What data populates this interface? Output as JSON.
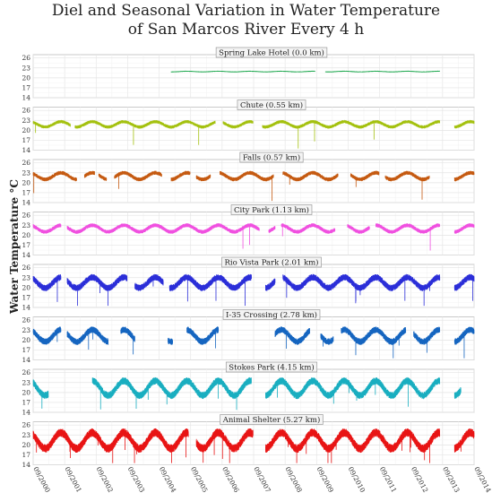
{
  "chart_data": {
    "type": "line",
    "title_lines": [
      "Diel and Seasonal Variation in Water Temperature",
      "of San Marcos River Every 4 h"
    ],
    "ylabel": "Water Temperature °C",
    "y_ticks": [
      14,
      17,
      20,
      23,
      26
    ],
    "ylim": [
      14,
      27
    ],
    "x_ticks": [
      "09/2000",
      "09/2001",
      "09/2002",
      "09/2003",
      "09/2004",
      "09/2005",
      "09/2006",
      "09/2007",
      "09/2008",
      "09/2009",
      "09/2010",
      "09/2011",
      "09/2012",
      "09/2013",
      "09/2014"
    ],
    "xlim": [
      2000.67,
      2014.67
    ],
    "grid": true,
    "panels": [
      {
        "label": "Spring Lake Hotel (0.0 km)",
        "color": "#1fa84f",
        "mean": 21.9,
        "amp": 0.1,
        "noise": 0.15,
        "spikes": 0,
        "segments": [
          [
            2005.05,
            2009.62
          ],
          [
            2009.95,
            2013.58
          ]
        ]
      },
      {
        "label": "Chute (0.55 km)",
        "color": "#a4c10f",
        "mean": 21.8,
        "amp": 0.8,
        "noise": 0.5,
        "spikes": 3,
        "segments": [
          [
            2000.67,
            2001.85
          ],
          [
            2002.0,
            2006.45
          ],
          [
            2006.7,
            2007.65
          ],
          [
            2007.95,
            2013.58
          ],
          [
            2014.05,
            2014.67
          ]
        ]
      },
      {
        "label": "Falls (0.57 km)",
        "color": "#c55a11",
        "mean": 22.0,
        "amp": 1.0,
        "noise": 0.6,
        "spikes": 4,
        "segments": [
          [
            2000.67,
            2002.05
          ],
          [
            2002.3,
            2002.62
          ],
          [
            2002.75,
            2003.0
          ],
          [
            2003.25,
            2004.75
          ],
          [
            2005.05,
            2005.65
          ],
          [
            2005.85,
            2006.3
          ],
          [
            2006.6,
            2008.3
          ],
          [
            2008.6,
            2010.35
          ],
          [
            2010.75,
            2011.65
          ],
          [
            2011.85,
            2013.25
          ],
          [
            2014.05,
            2014.67
          ]
        ]
      },
      {
        "label": "City Park (1.13 km)",
        "color": "#f050e0",
        "mean": 22.0,
        "amp": 1.0,
        "noise": 0.6,
        "spikes": 2,
        "segments": [
          [
            2000.67,
            2001.55
          ],
          [
            2001.75,
            2007.85
          ],
          [
            2008.15,
            2008.35
          ],
          [
            2008.55,
            2010.25
          ],
          [
            2010.65,
            2011.35
          ],
          [
            2011.55,
            2013.58
          ],
          [
            2014.05,
            2014.67
          ]
        ]
      },
      {
        "label": "Rio Vista Park (2.01 km)",
        "color": "#2b2ed8",
        "mean": 21.5,
        "amp": 1.6,
        "noise": 1.0,
        "spikes": 8,
        "segments": [
          [
            2000.67,
            2001.55
          ],
          [
            2001.75,
            2003.65
          ],
          [
            2003.9,
            2004.8
          ],
          [
            2005.0,
            2007.6
          ],
          [
            2008.05,
            2008.35
          ],
          [
            2008.6,
            2013.58
          ],
          [
            2014.05,
            2014.67
          ]
        ]
      },
      {
        "label": "I-35 Crossing (2.78 km)",
        "color": "#1565c0",
        "mean": 21.3,
        "amp": 1.8,
        "noise": 1.0,
        "spikes": 8,
        "segments": [
          [
            2000.67,
            2001.55
          ],
          [
            2001.75,
            2003.05
          ],
          [
            2003.45,
            2003.9
          ],
          [
            2004.95,
            2005.1
          ],
          [
            2005.55,
            2006.55
          ],
          [
            2008.35,
            2009.45
          ],
          [
            2009.8,
            2010.2
          ],
          [
            2010.45,
            2012.5
          ],
          [
            2012.75,
            2013.58
          ],
          [
            2014.05,
            2014.67
          ]
        ]
      },
      {
        "label": "Stokes Park (4.15 km)",
        "color": "#19aec0",
        "mean": 21.3,
        "amp": 2.2,
        "noise": 1.1,
        "spikes": 7,
        "segments": [
          [
            2000.67,
            2001.15
          ],
          [
            2002.55,
            2007.6
          ],
          [
            2008.05,
            2013.58
          ],
          [
            2014.05,
            2014.25
          ]
        ]
      },
      {
        "label": "Animal Shelter (5.27 km)",
        "color": "#e81414",
        "mean": 21.3,
        "amp": 2.4,
        "noise": 1.3,
        "spikes": 12,
        "segments": [
          [
            2000.67,
            2005.6
          ],
          [
            2005.85,
            2007.65
          ],
          [
            2008.05,
            2013.58
          ],
          [
            2014.05,
            2014.67
          ]
        ]
      }
    ]
  }
}
